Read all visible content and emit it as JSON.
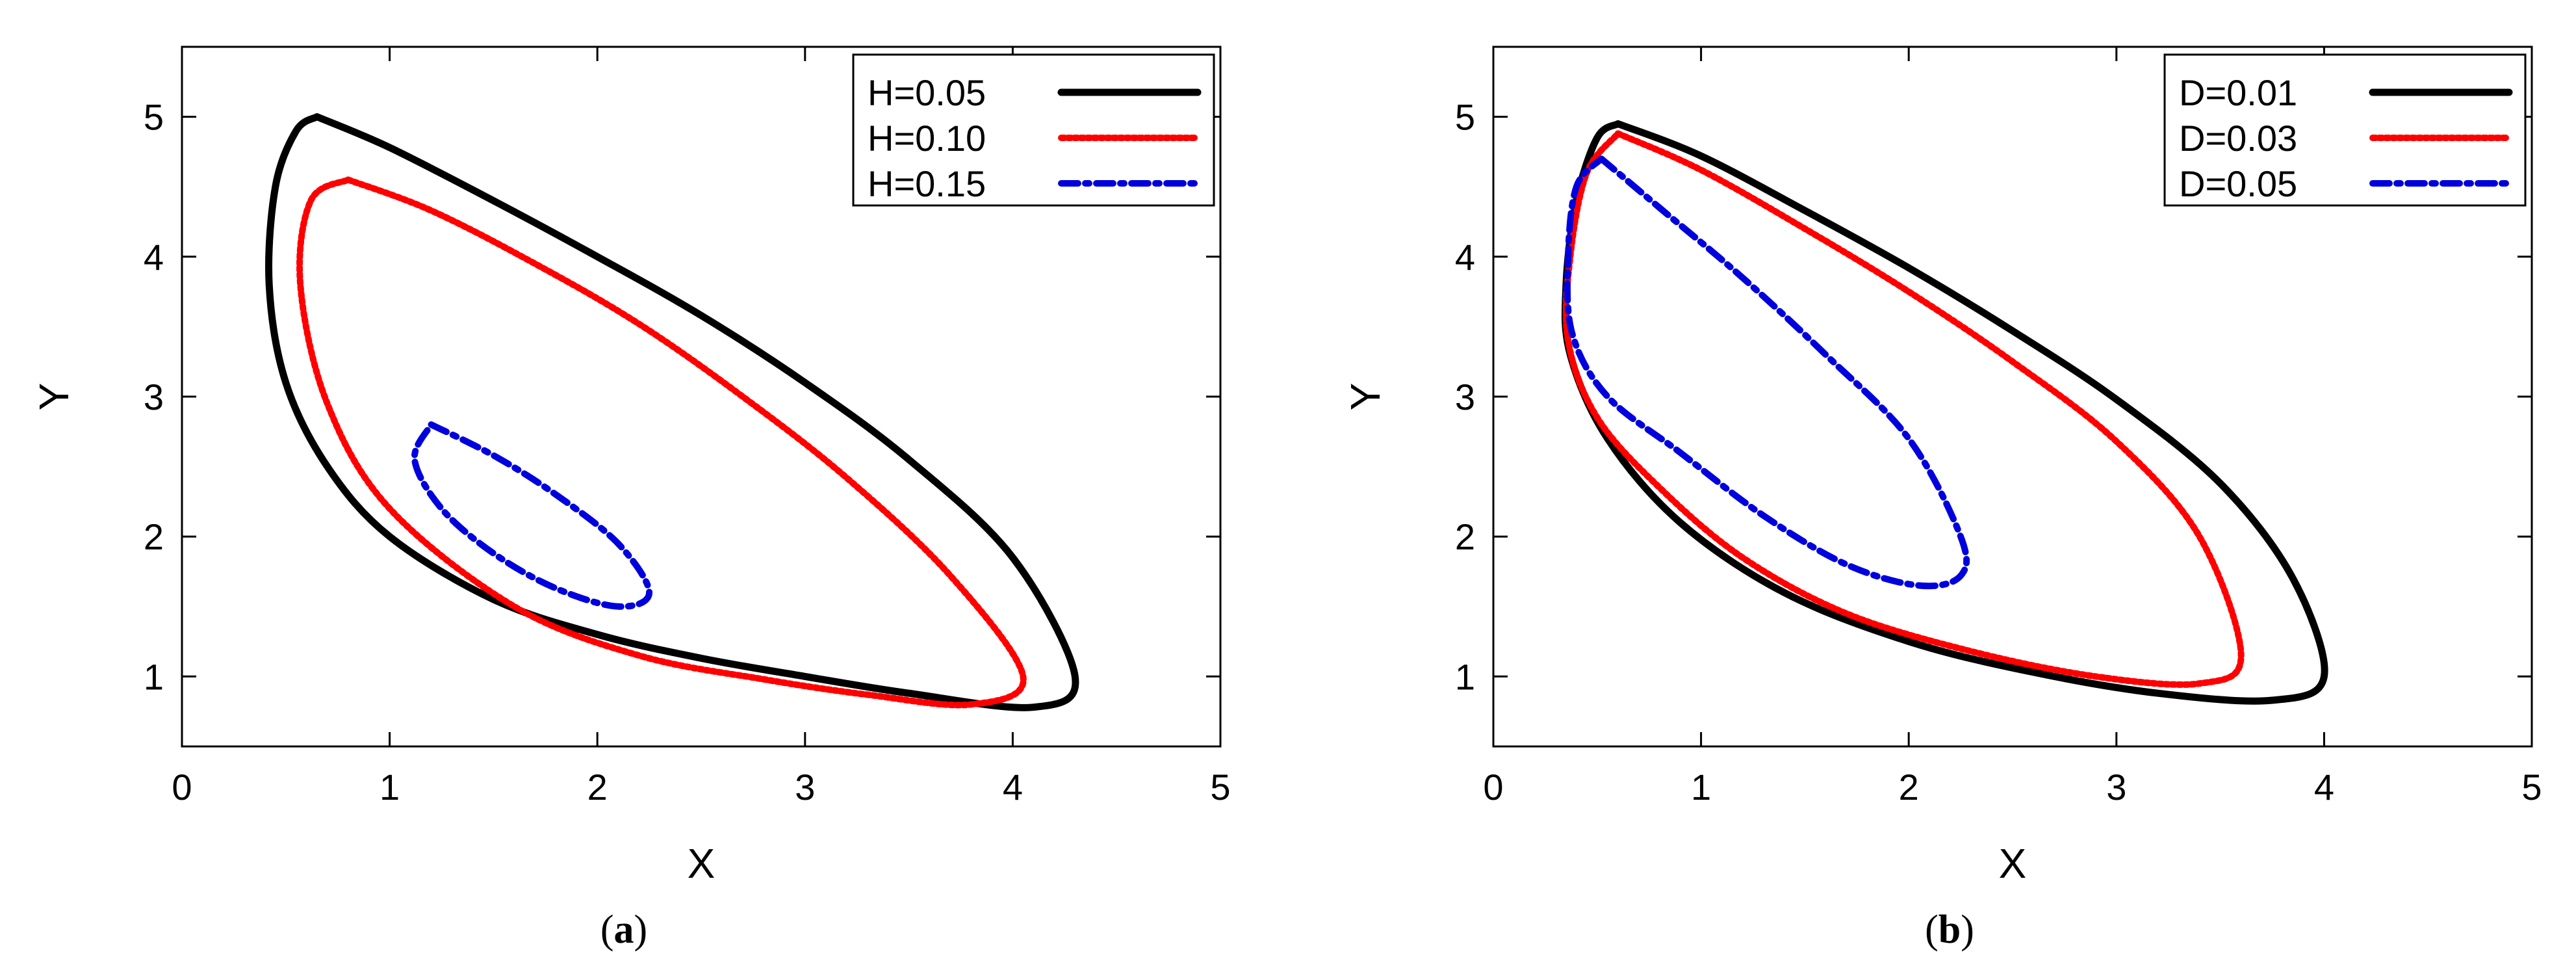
{
  "chart_data": [
    {
      "type": "line",
      "caption_letter": "a",
      "xlabel": "X",
      "ylabel": "Y",
      "xlim": [
        0,
        5
      ],
      "ylim": [
        0.5,
        5.5
      ],
      "xticks": [
        0,
        1,
        2,
        3,
        4,
        5
      ],
      "yticks": [
        1,
        2,
        3,
        4,
        5
      ],
      "legend_position": "top-right",
      "series": [
        {
          "name": "H=0.05",
          "color": "#000000",
          "style": "solid",
          "points": [
            [
              0.65,
              5.0
            ],
            [
              1.0,
              4.78
            ],
            [
              1.5,
              4.4
            ],
            [
              2.0,
              4.0
            ],
            [
              2.5,
              3.58
            ],
            [
              3.0,
              3.1
            ],
            [
              3.5,
              2.55
            ],
            [
              4.0,
              1.85
            ],
            [
              4.3,
              1.0
            ],
            [
              4.1,
              0.78
            ],
            [
              3.5,
              0.88
            ],
            [
              3.0,
              1.0
            ],
            [
              2.5,
              1.13
            ],
            [
              2.0,
              1.3
            ],
            [
              1.5,
              1.55
            ],
            [
              1.0,
              2.0
            ],
            [
              0.7,
              2.5
            ],
            [
              0.5,
              3.1
            ],
            [
              0.42,
              3.8
            ],
            [
              0.45,
              4.5
            ],
            [
              0.55,
              4.9
            ],
            [
              0.65,
              5.0
            ]
          ]
        },
        {
          "name": "H=0.10",
          "color": "#ff0000",
          "style": "dotted",
          "points": [
            [
              0.8,
              4.55
            ],
            [
              1.2,
              4.33
            ],
            [
              1.7,
              3.95
            ],
            [
              2.2,
              3.52
            ],
            [
              2.7,
              3.0
            ],
            [
              3.2,
              2.42
            ],
            [
              3.7,
              1.72
            ],
            [
              4.05,
              1.0
            ],
            [
              3.8,
              0.8
            ],
            [
              3.3,
              0.87
            ],
            [
              2.8,
              0.98
            ],
            [
              2.2,
              1.15
            ],
            [
              1.6,
              1.5
            ],
            [
              1.0,
              2.2
            ],
            [
              0.7,
              2.95
            ],
            [
              0.57,
              3.8
            ],
            [
              0.62,
              4.4
            ],
            [
              0.8,
              4.55
            ]
          ]
        },
        {
          "name": "H=0.15",
          "color": "#0000dd",
          "style": "dashdot",
          "points": [
            [
              1.2,
              2.8
            ],
            [
              1.5,
              2.58
            ],
            [
              1.8,
              2.3
            ],
            [
              2.1,
              1.95
            ],
            [
              2.25,
              1.6
            ],
            [
              2.1,
              1.5
            ],
            [
              1.8,
              1.63
            ],
            [
              1.5,
              1.88
            ],
            [
              1.25,
              2.2
            ],
            [
              1.12,
              2.55
            ],
            [
              1.2,
              2.8
            ]
          ]
        }
      ]
    },
    {
      "type": "line",
      "caption_letter": "b",
      "xlabel": "X",
      "ylabel": "Y",
      "xlim": [
        0,
        5
      ],
      "ylim": [
        0.5,
        5.5
      ],
      "xticks": [
        0,
        1,
        2,
        3,
        4,
        5
      ],
      "yticks": [
        1,
        2,
        3,
        4,
        5
      ],
      "legend_position": "top-right",
      "series": [
        {
          "name": "D=0.01",
          "color": "#000000",
          "style": "solid",
          "points": [
            [
              0.6,
              4.95
            ],
            [
              1.0,
              4.72
            ],
            [
              1.5,
              4.33
            ],
            [
              2.0,
              3.92
            ],
            [
              2.5,
              3.47
            ],
            [
              3.0,
              2.98
            ],
            [
              3.5,
              2.38
            ],
            [
              3.85,
              1.7
            ],
            [
              4.0,
              1.0
            ],
            [
              3.75,
              0.83
            ],
            [
              3.2,
              0.88
            ],
            [
              2.6,
              1.03
            ],
            [
              2.0,
              1.25
            ],
            [
              1.4,
              1.6
            ],
            [
              0.9,
              2.1
            ],
            [
              0.55,
              2.7
            ],
            [
              0.37,
              3.3
            ],
            [
              0.35,
              3.8
            ],
            [
              0.4,
              4.4
            ],
            [
              0.5,
              4.85
            ],
            [
              0.6,
              4.95
            ]
          ]
        },
        {
          "name": "D=0.03",
          "color": "#ff0000",
          "style": "dotted",
          "points": [
            [
              0.6,
              4.88
            ],
            [
              1.0,
              4.62
            ],
            [
              1.5,
              4.2
            ],
            [
              2.0,
              3.75
            ],
            [
              2.5,
              3.25
            ],
            [
              3.0,
              2.68
            ],
            [
              3.4,
              2.0
            ],
            [
              3.6,
              1.15
            ],
            [
              3.4,
              0.95
            ],
            [
              2.9,
              1.0
            ],
            [
              2.3,
              1.18
            ],
            [
              1.7,
              1.45
            ],
            [
              1.2,
              1.85
            ],
            [
              0.8,
              2.35
            ],
            [
              0.5,
              2.85
            ],
            [
              0.36,
              3.4
            ],
            [
              0.37,
              4.0
            ],
            [
              0.45,
              4.6
            ],
            [
              0.6,
              4.88
            ]
          ]
        },
        {
          "name": "D=0.05",
          "color": "#0000dd",
          "style": "dashdot",
          "points": [
            [
              0.52,
              4.7
            ],
            [
              0.8,
              4.35
            ],
            [
              1.2,
              3.85
            ],
            [
              1.6,
              3.3
            ],
            [
              2.0,
              2.7
            ],
            [
              2.25,
              2.0
            ],
            [
              2.25,
              1.72
            ],
            [
              2.05,
              1.65
            ],
            [
              1.7,
              1.8
            ],
            [
              1.3,
              2.15
            ],
            [
              0.9,
              2.6
            ],
            [
              0.55,
              3.0
            ],
            [
              0.38,
              3.45
            ],
            [
              0.36,
              4.0
            ],
            [
              0.4,
              4.5
            ],
            [
              0.52,
              4.7
            ]
          ]
        }
      ]
    }
  ]
}
